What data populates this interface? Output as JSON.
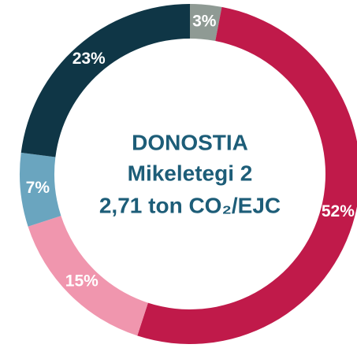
{
  "chart_data": {
    "type": "donut",
    "title_lines": [
      "DONOSTIA",
      "Mikeletegi 2",
      "2,71 ton CO₂/EJC"
    ],
    "values": [
      3,
      52,
      15,
      7,
      23
    ],
    "value_labels": [
      "3%",
      "52%",
      "15%",
      "7%",
      "23%"
    ],
    "colors": [
      "#8f9a94",
      "#c01a4a",
      "#f096ae",
      "#6aa5bf",
      "#0f3646"
    ]
  }
}
